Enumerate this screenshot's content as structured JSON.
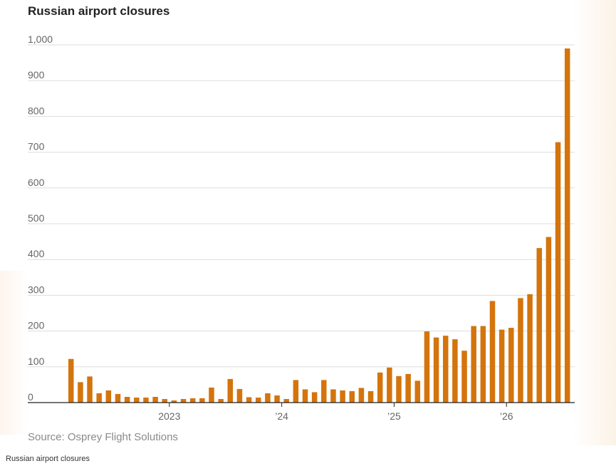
{
  "chart_data": {
    "type": "bar",
    "title": "Russian airport closures",
    "source": "Source: Osprey Flight Solutions",
    "caption": "Russian airport closures",
    "bar_color": "#d4740c",
    "ylim": [
      0,
      1000
    ],
    "y_ticks": [
      {
        "value": 0,
        "label": "0"
      },
      {
        "value": 100,
        "label": "100"
      },
      {
        "value": 200,
        "label": "200"
      },
      {
        "value": 300,
        "label": "300"
      },
      {
        "value": 400,
        "label": "400"
      },
      {
        "value": 500,
        "label": "500"
      },
      {
        "value": 600,
        "label": "600"
      },
      {
        "value": 700,
        "label": "700"
      },
      {
        "value": 800,
        "label": "800"
      },
      {
        "value": 900,
        "label": "900"
      },
      {
        "value": 1000,
        "label": "1,000"
      }
    ],
    "x_ticks": [
      {
        "index": 10.5,
        "label": "2023"
      },
      {
        "index": 22.5,
        "label": "’24"
      },
      {
        "index": 34.5,
        "label": "’25"
      },
      {
        "index": 46.5,
        "label": "’26"
      }
    ],
    "grid": true,
    "values": [
      122,
      57,
      73,
      26,
      34,
      24,
      16,
      14,
      14,
      16,
      10,
      6,
      10,
      12,
      12,
      42,
      10,
      66,
      38,
      15,
      14,
      26,
      20,
      10,
      63,
      37,
      29,
      63,
      37,
      34,
      32,
      41,
      32,
      84,
      98,
      74,
      80,
      61,
      199,
      182,
      187,
      177,
      145,
      214,
      214,
      284,
      204,
      209,
      292,
      303,
      432,
      463,
      728,
      990
    ]
  }
}
